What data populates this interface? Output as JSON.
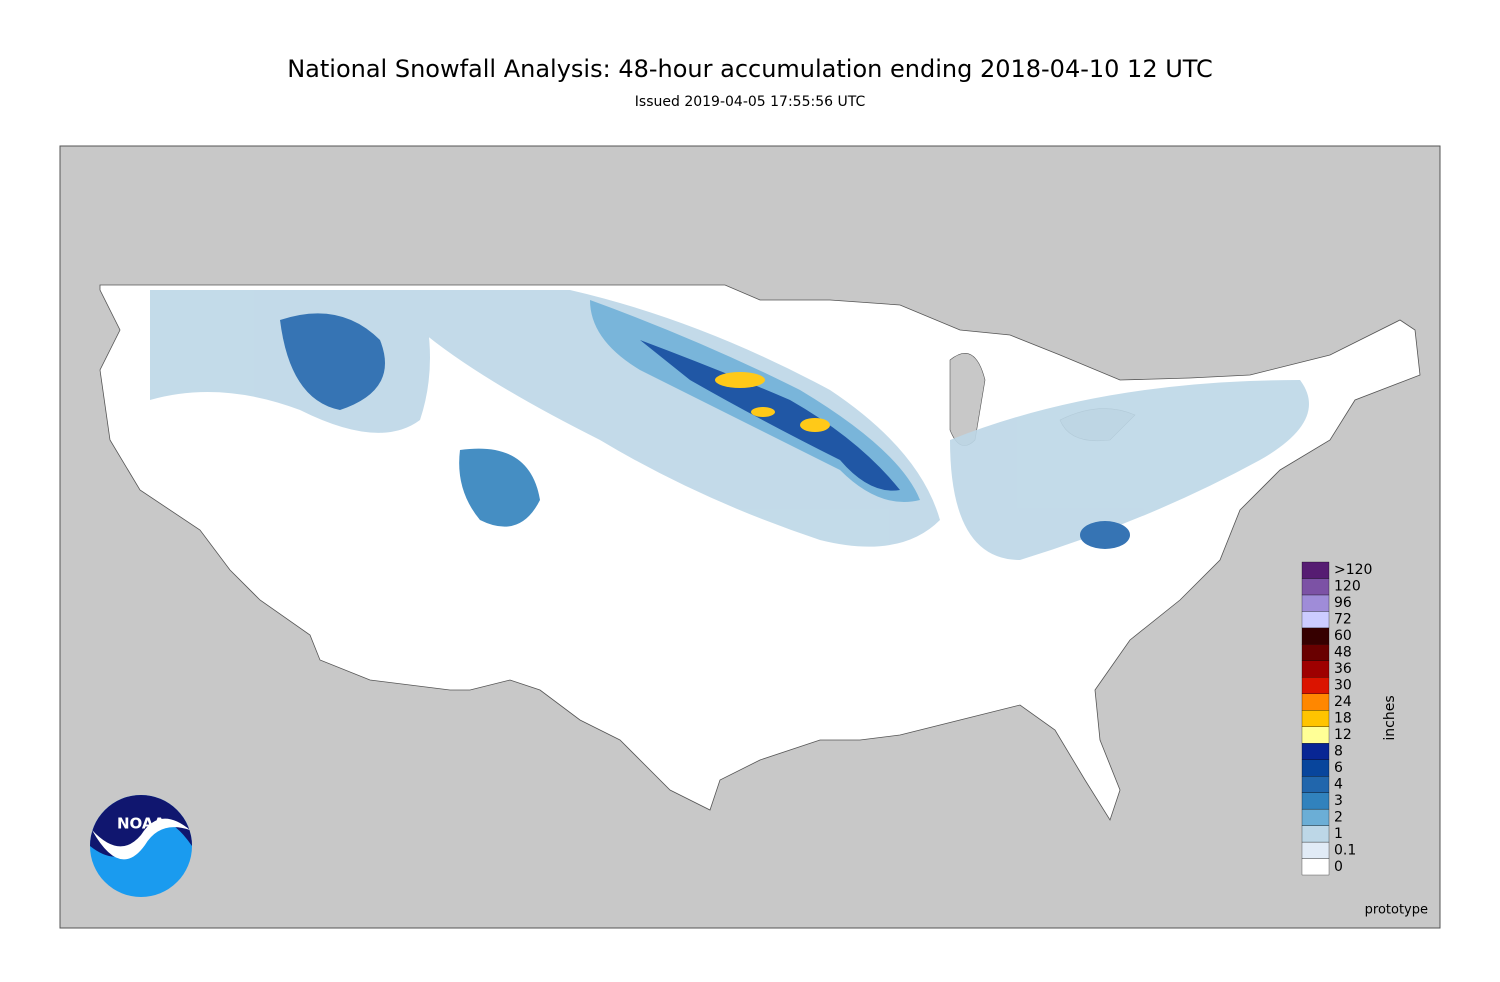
{
  "header": {
    "title": "National Snowfall Analysis: 48-hour accumulation ending 2018-04-10 12 UTC",
    "subtitle": "Issued 2019-04-05 17:55:56 UTC"
  },
  "legend": {
    "unit": "inches",
    "labels": [
      "0",
      "0.1",
      "1",
      "2",
      "3",
      "4",
      "6",
      "8",
      "12",
      "18",
      "24",
      "30",
      "36",
      "48",
      "60",
      "72",
      "96",
      "120",
      ">120"
    ],
    "colors": [
      "#ffffff",
      "#e1ebf6",
      "#bdd7e7",
      "#6baed6",
      "#3182bd",
      "#2166ac",
      "#08459c",
      "#082694",
      "#ffff96",
      "#ffc400",
      "#ff8700",
      "#db1400",
      "#9e0000",
      "#690000",
      "#360000",
      "#ccccff",
      "#9f8cd8",
      "#7c52a5",
      "#561c72"
    ]
  },
  "logo": {
    "text": "NOAA"
  },
  "footer": {
    "note": "prototype"
  }
}
